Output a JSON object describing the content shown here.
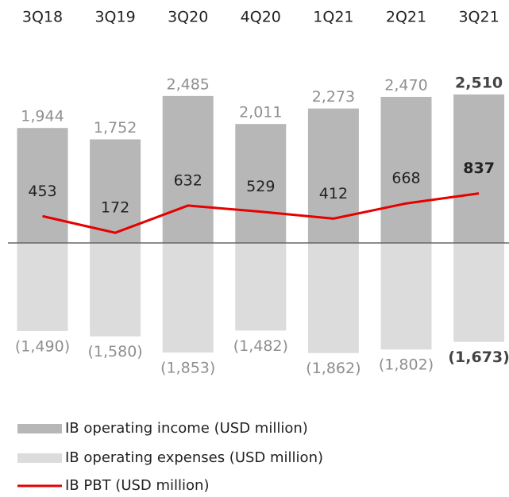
{
  "chart_data": {
    "type": "bar",
    "categories": [
      "3Q18",
      "3Q19",
      "3Q20",
      "4Q20",
      "1Q21",
      "2Q21",
      "3Q21"
    ],
    "series": [
      {
        "name": "IB operating income (USD million)",
        "color": "#b7b7b7",
        "values": [
          1944,
          1752,
          2485,
          2011,
          2273,
          2470,
          2510
        ],
        "value_labels": [
          "1,944",
          "1,752",
          "2,485",
          "2,011",
          "2,273",
          "2,470",
          "2,510"
        ]
      },
      {
        "name": "IB operating expenses (USD million)",
        "color": "#dcdcdc",
        "values": [
          -1490,
          -1580,
          -1853,
          -1482,
          -1862,
          -1802,
          -1673
        ],
        "value_labels": [
          "(1,490)",
          "(1,580)",
          "(1,853)",
          "(1,482)",
          "(1,862)",
          "(1,802)",
          "(1,673)"
        ]
      },
      {
        "name": "IB PBT (USD million)",
        "color": "#e60000",
        "type": "line",
        "values": [
          453,
          172,
          632,
          529,
          412,
          668,
          837
        ]
      }
    ],
    "ylim": [
      -2000,
      3000
    ]
  }
}
